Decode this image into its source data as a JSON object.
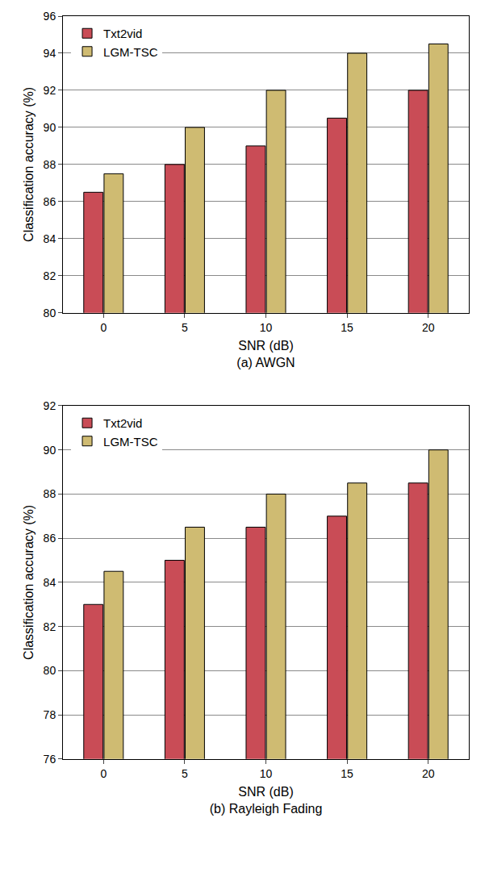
{
  "chart_data": [
    {
      "type": "bar",
      "subtitle": "(a) AWGN",
      "x_label": "SNR (dB)",
      "y_label": "Classification accuracy (%)",
      "categories": [
        "0",
        "5",
        "10",
        "15",
        "20"
      ],
      "series": [
        {
          "name": "Txt2vid",
          "color": "#c94c56",
          "values": [
            86.5,
            88,
            89,
            90.5,
            92
          ]
        },
        {
          "name": "LGM-TSC",
          "color": "#cfbb72",
          "values": [
            87.5,
            90,
            92,
            94,
            94.5
          ]
        }
      ],
      "ylim": [
        80,
        96
      ],
      "yticks": [
        80,
        82,
        84,
        86,
        88,
        90,
        92,
        94,
        96
      ],
      "grid": true,
      "legend": "upper left"
    },
    {
      "type": "bar",
      "subtitle": "(b) Rayleigh Fading",
      "x_label": "SNR (dB)",
      "y_label": "Classification accuracy (%)",
      "categories": [
        "0",
        "5",
        "10",
        "15",
        "20"
      ],
      "series": [
        {
          "name": "Txt2vid",
          "color": "#c94c56",
          "values": [
            83,
            85,
            86.5,
            87,
            88.5
          ]
        },
        {
          "name": "LGM-TSC",
          "color": "#cfbb72",
          "values": [
            84.5,
            86.5,
            88,
            88.5,
            90
          ]
        }
      ],
      "ylim": [
        76,
        92
      ],
      "yticks": [
        76,
        78,
        80,
        82,
        84,
        86,
        88,
        90,
        92
      ],
      "grid": true,
      "legend": "upper left"
    }
  ]
}
